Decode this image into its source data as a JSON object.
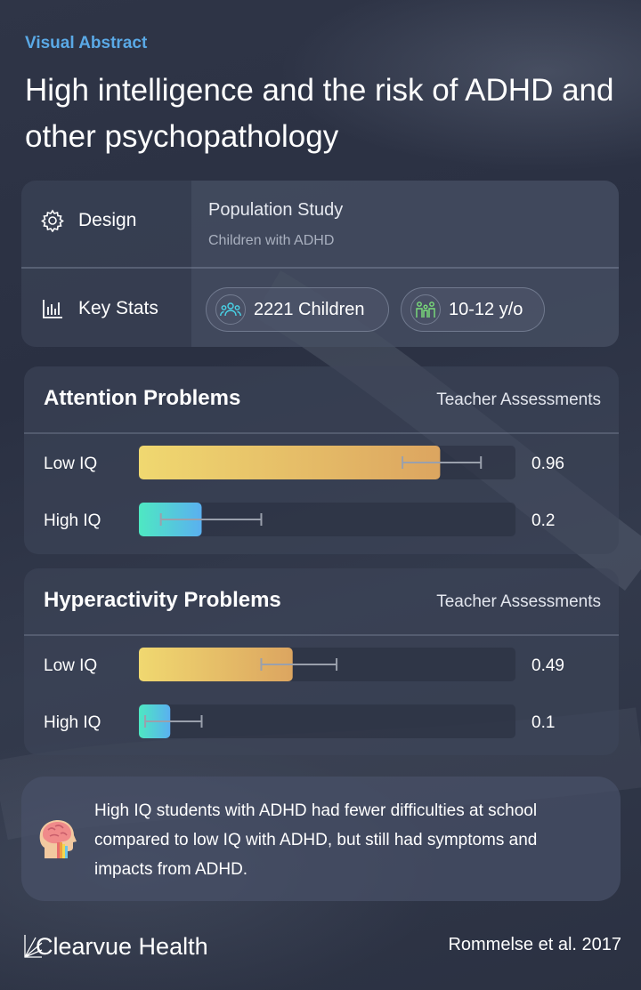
{
  "header": {
    "eyebrow": "Visual Abstract",
    "title": "High intelligence and the risk of ADHD and other psychopathology"
  },
  "info": {
    "design_label": "Design",
    "design_icon": "gear-icon",
    "design_title": "Population Study",
    "design_sub": "Children with ADHD",
    "stats_label": "Key Stats",
    "stats_icon": "bar-chart-icon",
    "pills": [
      {
        "icon": "group-icon",
        "label": "2221 Children"
      },
      {
        "icon": "family-icon",
        "label": "10-12 y/o"
      }
    ]
  },
  "chart_data": [
    {
      "type": "bar",
      "title": "Attention Problems",
      "subtitle": "Teacher Assessments",
      "categories": [
        "Low IQ",
        "High IQ"
      ],
      "values": [
        0.96,
        0.2
      ],
      "value_labels": [
        "0.96",
        "0.2"
      ],
      "error_bars": [
        [
          0.84,
          1.09
        ],
        [
          0.07,
          0.39
        ]
      ],
      "xlim": [
        0,
        1.2
      ],
      "colors": [
        "#f0d870",
        "#4ee8c2"
      ]
    },
    {
      "type": "bar",
      "title": "Hyperactivity Problems",
      "subtitle": "Teacher Assessments",
      "categories": [
        "Low IQ",
        "High IQ"
      ],
      "values": [
        0.49,
        0.1
      ],
      "value_labels": [
        "0.49",
        "0.1"
      ],
      "error_bars": [
        [
          0.39,
          0.63
        ],
        [
          0.02,
          0.2
        ]
      ],
      "xlim": [
        0,
        1.2
      ],
      "colors": [
        "#f0d870",
        "#4ee8c2"
      ]
    }
  ],
  "footer": {
    "icon": "brain-head-icon",
    "text": "High IQ students with ADHD had fewer difficulties at school compared to low IQ with ADHD, but still had symptoms and impacts from ADHD.",
    "brand": "Clearvue Health",
    "citation": "Rommelse et al. 2017"
  }
}
